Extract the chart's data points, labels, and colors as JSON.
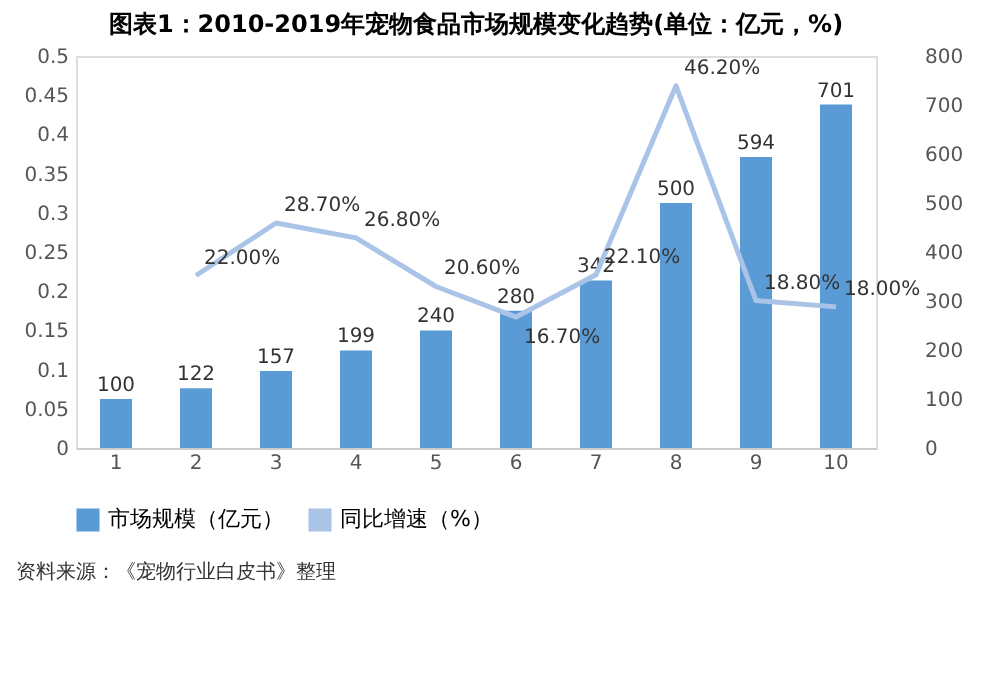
{
  "chart_data": {
    "type": "bar",
    "title": "图表1：2010-2019年宠物食品市场规模变化趋势(单位：亿元，%)",
    "categories": [
      "1",
      "2",
      "3",
      "4",
      "5",
      "6",
      "7",
      "8",
      "9",
      "10"
    ],
    "series": [
      {
        "name": "市场规模（亿元）",
        "axis": "y2",
        "color": "#5b9bd5",
        "values": [
          100,
          122,
          157,
          199,
          240,
          280,
          342,
          500,
          594,
          701
        ],
        "value_labels": [
          "100",
          "122",
          "157",
          "199",
          "240",
          "280",
          "342",
          "500",
          "594",
          "701"
        ]
      },
      {
        "name": "同比增速（%）",
        "type": "line",
        "axis": "y",
        "color": "#a9c4e6",
        "values": [
          null,
          0.22,
          0.287,
          0.268,
          0.206,
          0.167,
          0.221,
          0.462,
          0.188,
          0.18
        ],
        "value_labels": [
          null,
          "22.00%",
          "28.70%",
          "26.80%",
          "20.60%",
          "16.70%",
          "22.10%",
          "46.20%",
          "18.80%",
          "18.00%"
        ]
      }
    ],
    "ylim": [
      0,
      0.5
    ],
    "yticks": [
      0,
      0.05,
      0.1,
      0.15,
      0.2,
      0.25,
      0.3,
      0.35,
      0.4,
      0.45,
      0.5
    ],
    "y2lim": [
      0,
      800
    ],
    "y2ticks": [
      0,
      100,
      200,
      300,
      400,
      500,
      600,
      700,
      800
    ],
    "grid": false,
    "legend": "bottom",
    "marker": "none",
    "line_style": "solid",
    "annotations": [
      "资料来源：《宠物行业白皮书》整理"
    ]
  }
}
